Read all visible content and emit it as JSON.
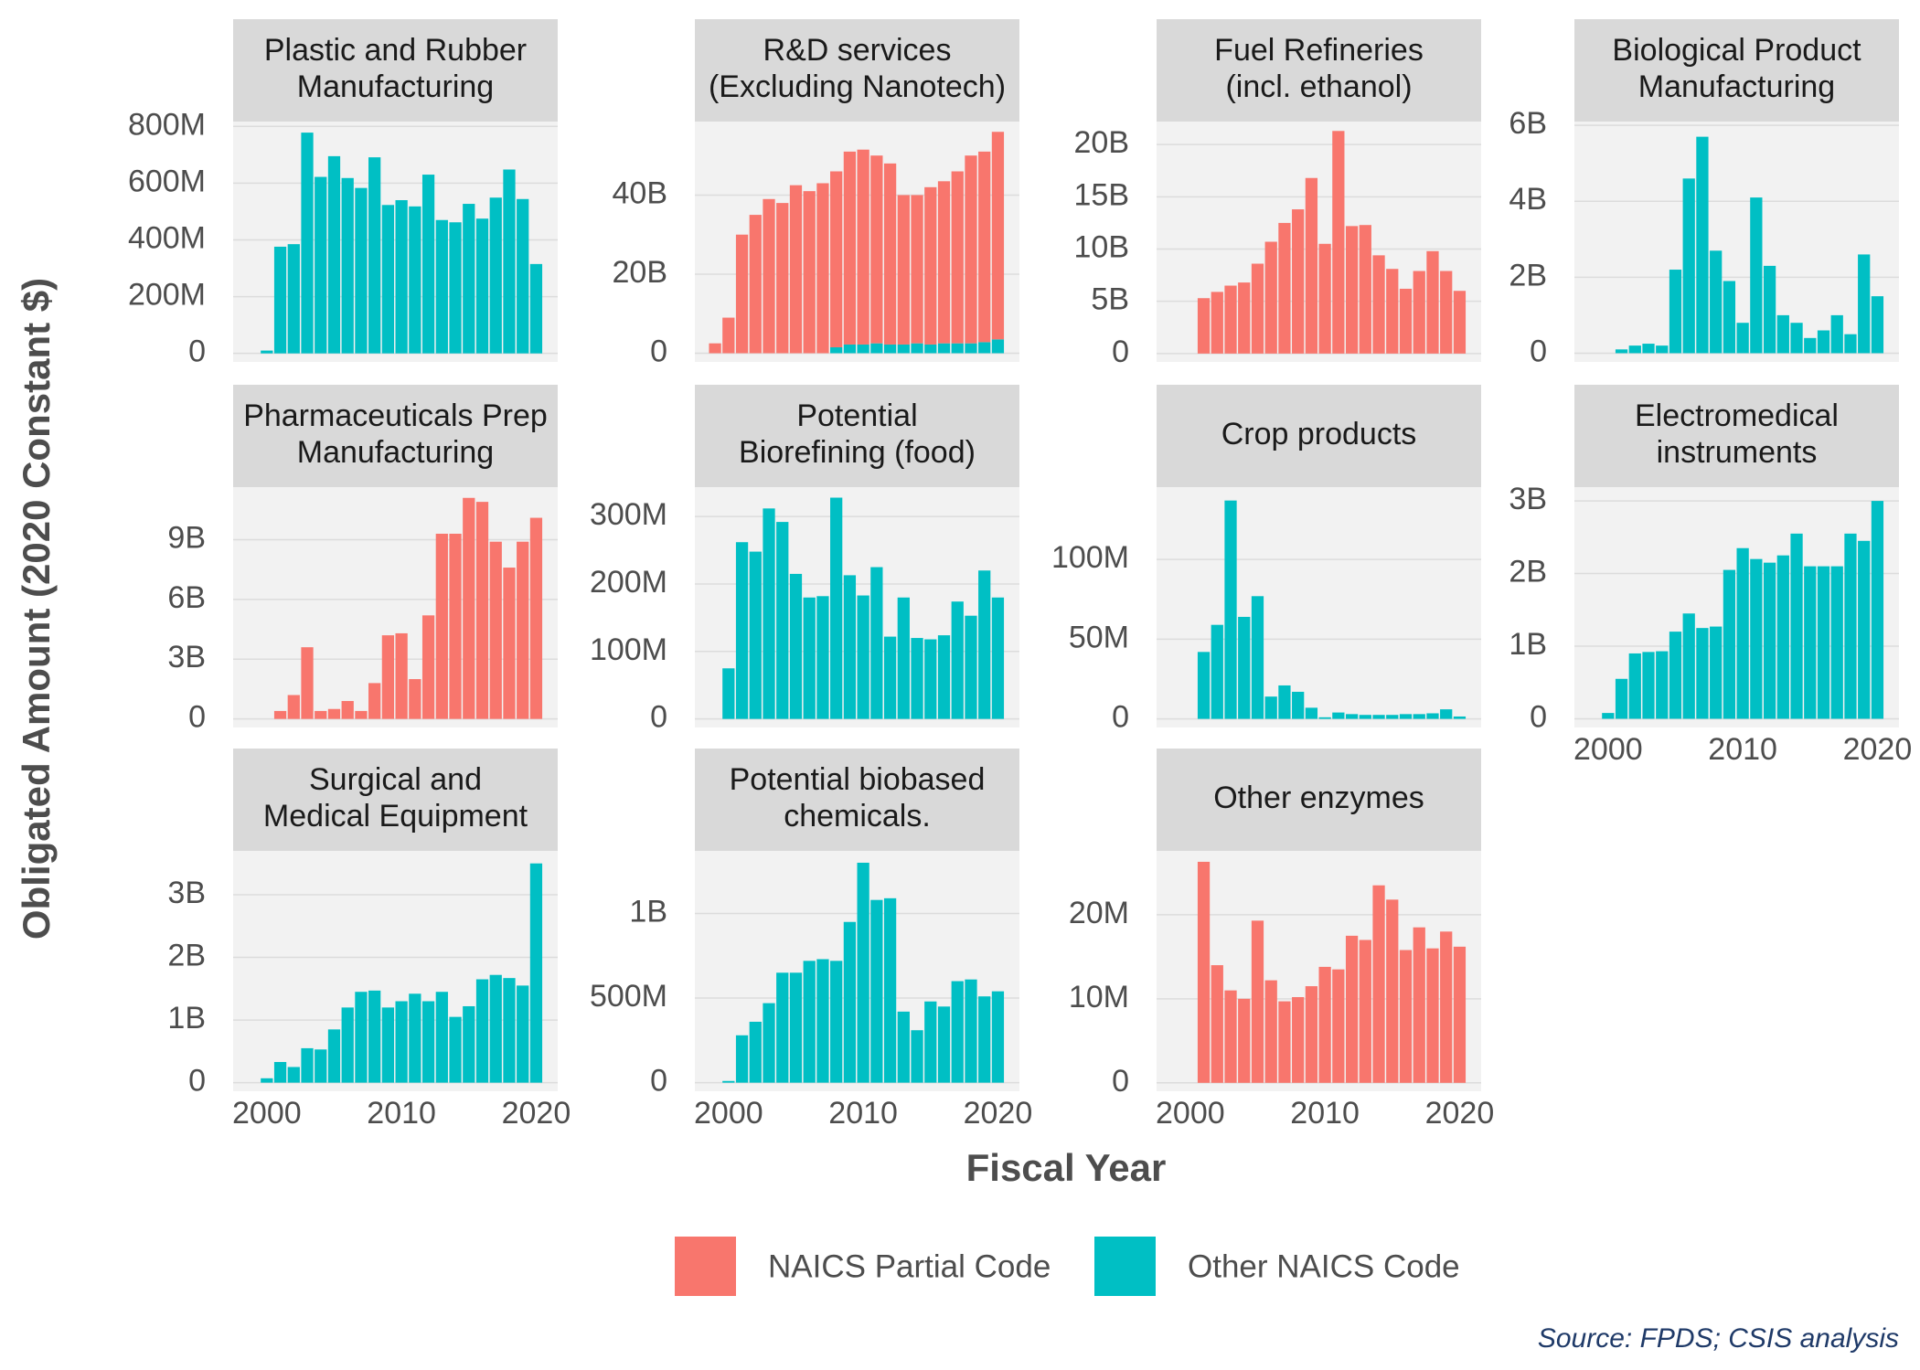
{
  "figure": {
    "x_label": "Fiscal Year",
    "y_label": "Obligated Amount (2020 Constant $)",
    "source": "Source: FPDS; CSIS analysis",
    "legend_position": "bottom"
  },
  "chart_data": [
    {
      "type": "bar",
      "title": [
        "Plastic and Rubber",
        "Manufacturing"
      ],
      "x": [
        2000,
        2001,
        2002,
        2003,
        2004,
        2005,
        2006,
        2007,
        2008,
        2009,
        2010,
        2011,
        2012,
        2013,
        2014,
        2015,
        2016,
        2017,
        2018,
        2019,
        2020
      ],
      "series": [
        {
          "name": "Other NAICS Code",
          "color": "#00BFC4",
          "values": [
            10000000.0,
            376000000.0,
            385000000.0,
            778000000.0,
            622000000.0,
            695000000.0,
            618000000.0,
            583000000.0,
            691000000.0,
            523000000.0,
            540000000.0,
            518000000.0,
            630000000.0,
            470000000.0,
            462000000.0,
            527000000.0,
            475000000.0,
            549000000.0,
            648000000.0,
            544000000.0,
            315000000.0
          ]
        }
      ],
      "xlim": [
        1997.5,
        2021.6
      ],
      "ylim": [
        -30000000.0,
        817000000.0
      ],
      "yticks": [
        0,
        {
          "value": 200000000.0,
          "label": "200M"
        },
        {
          "value": 400000000.0,
          "label": "400M"
        },
        {
          "value": 600000000.0,
          "label": "600M"
        },
        {
          "value": 800000000.0,
          "label": "800M"
        }
      ]
    },
    {
      "type": "bar",
      "title": [
        "R&D services",
        "(Excluding Nanotech)"
      ],
      "x": [
        1999,
        2000,
        2001,
        2002,
        2003,
        2004,
        2005,
        2006,
        2007,
        2008,
        2009,
        2010,
        2011,
        2012,
        2013,
        2014,
        2015,
        2016,
        2017,
        2018,
        2019,
        2020
      ],
      "series": [
        {
          "name": "NAICS Partial Code",
          "color": "#F8766D",
          "values": [
            2500000000.0,
            9000000000.0,
            30000000000.0,
            35000000000.0,
            39000000000.0,
            38000000000.0,
            42500000000.0,
            41000000000.0,
            43000000000.0,
            44500000000.0,
            48800000000.0,
            49300000000.0,
            47500000000.0,
            45800000000.0,
            37800000000.0,
            37500000000.0,
            39800000000.0,
            41000000000.0,
            43500000000.0,
            47500000000.0,
            48200000000.0,
            52500000000.0
          ]
        },
        {
          "name": "Other NAICS Code",
          "color": "#00BFC4",
          "values": [
            null,
            null,
            null,
            null,
            null,
            null,
            null,
            null,
            null,
            1500000000.0,
            2200000000.0,
            2200000000.0,
            2500000000.0,
            2200000000.0,
            2200000000.0,
            2500000000.0,
            2200000000.0,
            2500000000.0,
            2500000000.0,
            2500000000.0,
            2800000000.0,
            3500000000.0
          ]
        }
      ],
      "xlim": [
        1997.5,
        2021.6
      ],
      "ylim": [
        -2200000000.0,
        58600000000.0
      ],
      "yticks": [
        0,
        {
          "value": 20000000000.0,
          "label": "20B"
        },
        {
          "value": 40000000000.0,
          "label": "40B"
        }
      ]
    },
    {
      "type": "bar",
      "title": [
        "Fuel Refineries",
        "(incl. ethanol)"
      ],
      "x": [
        2001,
        2002,
        2003,
        2004,
        2005,
        2006,
        2007,
        2008,
        2009,
        2010,
        2011,
        2012,
        2013,
        2014,
        2015,
        2016,
        2017,
        2018,
        2019,
        2020
      ],
      "series": [
        {
          "name": "NAICS Partial Code",
          "color": "#F8766D",
          "values": [
            5300000000.0,
            5900000000.0,
            6500000000.0,
            6800000000.0,
            8600000000.0,
            10700000000.0,
            12500000000.0,
            13800000000.0,
            16800000000.0,
            10500000000.0,
            21300000000.0,
            12200000000.0,
            12300000000.0,
            9400000000.0,
            8100000000.0,
            6200000000.0,
            7900000000.0,
            9800000000.0,
            7900000000.0,
            6000000000.0
          ]
        }
      ],
      "xlim": [
        1997.5,
        2021.6
      ],
      "ylim": [
        -800000000.0,
        22200000000.0
      ],
      "yticks": [
        0,
        {
          "value": 5000000000.0,
          "label": "5B"
        },
        {
          "value": 10000000000.0,
          "label": "10B"
        },
        {
          "value": 15000000000.0,
          "label": "15B"
        },
        {
          "value": 20000000000.0,
          "label": "20B"
        }
      ]
    },
    {
      "type": "bar",
      "title": [
        "Biological Product",
        "Manufacturing"
      ],
      "x": [
        2001,
        2002,
        2003,
        2004,
        2005,
        2006,
        2007,
        2008,
        2009,
        2010,
        2011,
        2012,
        2013,
        2014,
        2015,
        2016,
        2017,
        2018,
        2019,
        2020
      ],
      "series": [
        {
          "name": "Other NAICS Code",
          "color": "#00BFC4",
          "values": [
            100000000.0,
            200000000.0,
            250000000.0,
            200000000.0,
            2200000000.0,
            4600000000.0,
            5700000000.0,
            2700000000.0,
            1900000000.0,
            800000000.0,
            4100000000.0,
            2300000000.0,
            1000000000.0,
            800000000.0,
            400000000.0,
            600000000.0,
            1000000000.0,
            500000000.0,
            2600000000.0,
            1500000000.0
          ]
        }
      ],
      "xlim": [
        1997.5,
        2021.6
      ],
      "ylim": [
        -230000000.0,
        6100000000.0
      ],
      "yticks": [
        0,
        {
          "value": 2000000000.0,
          "label": "2B"
        },
        {
          "value": 4000000000.0,
          "label": "4B"
        },
        {
          "value": 6000000000.0,
          "label": "6B"
        }
      ]
    },
    {
      "type": "bar",
      "title": [
        "Pharmaceuticals Prep",
        "Manufacturing"
      ],
      "x": [
        2001,
        2002,
        2003,
        2004,
        2005,
        2006,
        2007,
        2008,
        2009,
        2010,
        2011,
        2012,
        2013,
        2014,
        2015,
        2016,
        2017,
        2018,
        2019,
        2020
      ],
      "series": [
        {
          "name": "NAICS Partial Code",
          "color": "#F8766D",
          "values": [
            400000000.0,
            1200000000.0,
            3600000000.0,
            400000000.0,
            500000000.0,
            900000000.0,
            400000000.0,
            1800000000.0,
            4200000000.0,
            4300000000.0,
            2000000000.0,
            5200000000.0,
            9300000000.0,
            9300000000.0,
            11100000000.0,
            10900000000.0,
            8900000000.0,
            7600000000.0,
            8900000000.0,
            10100000000.0
          ]
        }
      ],
      "xlim": [
        1997.5,
        2021.6
      ],
      "ylim": [
        -430000000.0,
        11640000000.0
      ],
      "yticks": [
        0,
        {
          "value": 3000000000.0,
          "label": "3B"
        },
        {
          "value": 6000000000.0,
          "label": "6B"
        },
        {
          "value": 9000000000.0,
          "label": "9B"
        }
      ]
    },
    {
      "type": "bar",
      "title": [
        "Potential",
        "Biorefining (food)"
      ],
      "x": [
        2000,
        2001,
        2002,
        2003,
        2004,
        2005,
        2006,
        2007,
        2008,
        2009,
        2010,
        2011,
        2012,
        2013,
        2014,
        2015,
        2016,
        2017,
        2018,
        2019,
        2020
      ],
      "series": [
        {
          "name": "Other NAICS Code",
          "color": "#00BFC4",
          "values": [
            75000000.0,
            262000000.0,
            248000000.0,
            312000000.0,
            292000000.0,
            215000000.0,
            180000000.0,
            182000000.0,
            328000000.0,
            213000000.0,
            183000000.0,
            225000000.0,
            122000000.0,
            180000000.0,
            120000000.0,
            118000000.0,
            124000000.0,
            174000000.0,
            153000000.0,
            220000000.0,
            180000000.0
          ]
        }
      ],
      "xlim": [
        1997.5,
        2021.6
      ],
      "ylim": [
        -12700000.0,
        343600000.0
      ],
      "yticks": [
        0,
        {
          "value": 100000000.0,
          "label": "100M"
        },
        {
          "value": 200000000.0,
          "label": "200M"
        },
        {
          "value": 300000000.0,
          "label": "300M"
        }
      ]
    },
    {
      "type": "bar",
      "title": [
        "Crop products"
      ],
      "x": [
        2001,
        2002,
        2003,
        2004,
        2005,
        2006,
        2007,
        2008,
        2009,
        2010,
        2011,
        2012,
        2013,
        2014,
        2015,
        2016,
        2017,
        2018,
        2019,
        2020
      ],
      "series": [
        {
          "name": "Other NAICS Code",
          "color": "#00BFC4",
          "values": [
            42000000.0,
            59000000.0,
            137000000.0,
            64000000.0,
            77000000.0,
            14000000.0,
            21000000.0,
            17000000.0,
            7000000.0,
            1000000.0,
            4000000.0,
            3000000.0,
            2500000.0,
            2500000.0,
            2500000.0,
            3000000.0,
            3000000.0,
            3500000.0,
            6000000.0,
            1500000.0
          ]
        }
      ],
      "xlim": [
        1997.5,
        2021.6
      ],
      "ylim": [
        -5400000.0,
        145400000.0
      ],
      "yticks": [
        0,
        {
          "value": 50000000.0,
          "label": "50M"
        },
        {
          "value": 100000000.0,
          "label": "100M"
        }
      ]
    },
    {
      "type": "bar",
      "title": [
        "Electromedical",
        "instruments"
      ],
      "x": [
        2000,
        2001,
        2002,
        2003,
        2004,
        2005,
        2006,
        2007,
        2008,
        2009,
        2010,
        2011,
        2012,
        2013,
        2014,
        2015,
        2016,
        2017,
        2018,
        2019,
        2020
      ],
      "series": [
        {
          "name": "Other NAICS Code",
          "color": "#00BFC4",
          "values": [
            80000000.0,
            550000000.0,
            900000000.0,
            920000000.0,
            930000000.0,
            1200000000.0,
            1450000000.0,
            1250000000.0,
            1270000000.0,
            2050000000.0,
            2350000000.0,
            2200000000.0,
            2150000000.0,
            2250000000.0,
            2550000000.0,
            2100000000.0,
            2100000000.0,
            2100000000.0,
            2550000000.0,
            2450000000.0,
            3000000000.0
          ]
        }
      ],
      "xlim": [
        1997.5,
        2021.6
      ],
      "ylim": [
        -120000000.0,
        3190000000.0
      ],
      "yticks": [
        0,
        {
          "value": 1000000000.0,
          "label": "1B"
        },
        {
          "value": 2000000000.0,
          "label": "2B"
        },
        {
          "value": 3000000000.0,
          "label": "3B"
        }
      ],
      "xticks": [
        2000,
        2010,
        2020
      ]
    },
    {
      "type": "bar",
      "title": [
        "Surgical and",
        "Medical Equipment"
      ],
      "x": [
        2000,
        2001,
        2002,
        2003,
        2004,
        2005,
        2006,
        2007,
        2008,
        2009,
        2010,
        2011,
        2012,
        2013,
        2014,
        2015,
        2016,
        2017,
        2018,
        2019,
        2020
      ],
      "series": [
        {
          "name": "Other NAICS Code",
          "color": "#00BFC4",
          "values": [
            70000000.0,
            330000000.0,
            250000000.0,
            550000000.0,
            530000000.0,
            850000000.0,
            1200000000.0,
            1450000000.0,
            1470000000.0,
            1200000000.0,
            1300000000.0,
            1420000000.0,
            1300000000.0,
            1450000000.0,
            1050000000.0,
            1220000000.0,
            1650000000.0,
            1720000000.0,
            1670000000.0,
            1550000000.0,
            3500000000.0
          ]
        }
      ],
      "xlim": [
        1997.5,
        2021.6
      ],
      "ylim": [
        -137000000.0,
        3700000000.0
      ],
      "yticks": [
        0,
        {
          "value": 1000000000.0,
          "label": "1B"
        },
        {
          "value": 2000000000.0,
          "label": "2B"
        },
        {
          "value": 3000000000.0,
          "label": "3B"
        }
      ],
      "xticks": [
        2000,
        2010,
        2020
      ]
    },
    {
      "type": "bar",
      "title": [
        "Potential biobased",
        "chemicals."
      ],
      "x": [
        2000,
        2001,
        2002,
        2003,
        2004,
        2005,
        2006,
        2007,
        2008,
        2009,
        2010,
        2011,
        2012,
        2013,
        2014,
        2015,
        2016,
        2017,
        2018,
        2019,
        2020
      ],
      "series": [
        {
          "name": "Other NAICS Code",
          "color": "#00BFC4",
          "values": [
            10000000.0,
            280000000.0,
            360000000.0,
            470000000.0,
            650000000.0,
            650000000.0,
            720000000.0,
            730000000.0,
            720000000.0,
            950000000.0,
            1300000000.0,
            1080000000.0,
            1090000000.0,
            420000000.0,
            310000000.0,
            480000000.0,
            450000000.0,
            600000000.0,
            610000000.0,
            510000000.0,
            540000000.0
          ]
        }
      ],
      "xlim": [
        1997.5,
        2021.6
      ],
      "ylim": [
        -50700000.0,
        1370000000.0
      ],
      "yticks": [
        0,
        {
          "value": 500000000.0,
          "label": "500M"
        },
        {
          "value": 1000000000.0,
          "label": "1B"
        }
      ],
      "xticks": [
        2000,
        2010,
        2020
      ]
    },
    {
      "type": "bar",
      "title": [
        "Other enzymes"
      ],
      "x": [
        2001,
        2002,
        2003,
        2004,
        2005,
        2006,
        2007,
        2008,
        2009,
        2010,
        2011,
        2012,
        2013,
        2014,
        2015,
        2016,
        2017,
        2018,
        2019,
        2020
      ],
      "series": [
        {
          "name": "NAICS Partial Code",
          "color": "#F8766D",
          "values": [
            26300000.0,
            14000000.0,
            11000000.0,
            10000000.0,
            19300000.0,
            12200000.0,
            9700000.0,
            10200000.0,
            11500000.0,
            13800000.0,
            13500000.0,
            17500000.0,
            17000000.0,
            23500000.0,
            21800000.0,
            15800000.0,
            18500000.0,
            16000000.0,
            18000000.0,
            16200000.0
          ]
        }
      ],
      "xlim": [
        1997.5,
        2021.6
      ],
      "ylim": [
        -1000000.0,
        27600000.0
      ],
      "yticks": [
        0,
        {
          "value": 10000000.0,
          "label": "10M"
        },
        {
          "value": 20000000.0,
          "label": "20M"
        }
      ],
      "xticks": [
        2000,
        2010,
        2020
      ]
    }
  ]
}
